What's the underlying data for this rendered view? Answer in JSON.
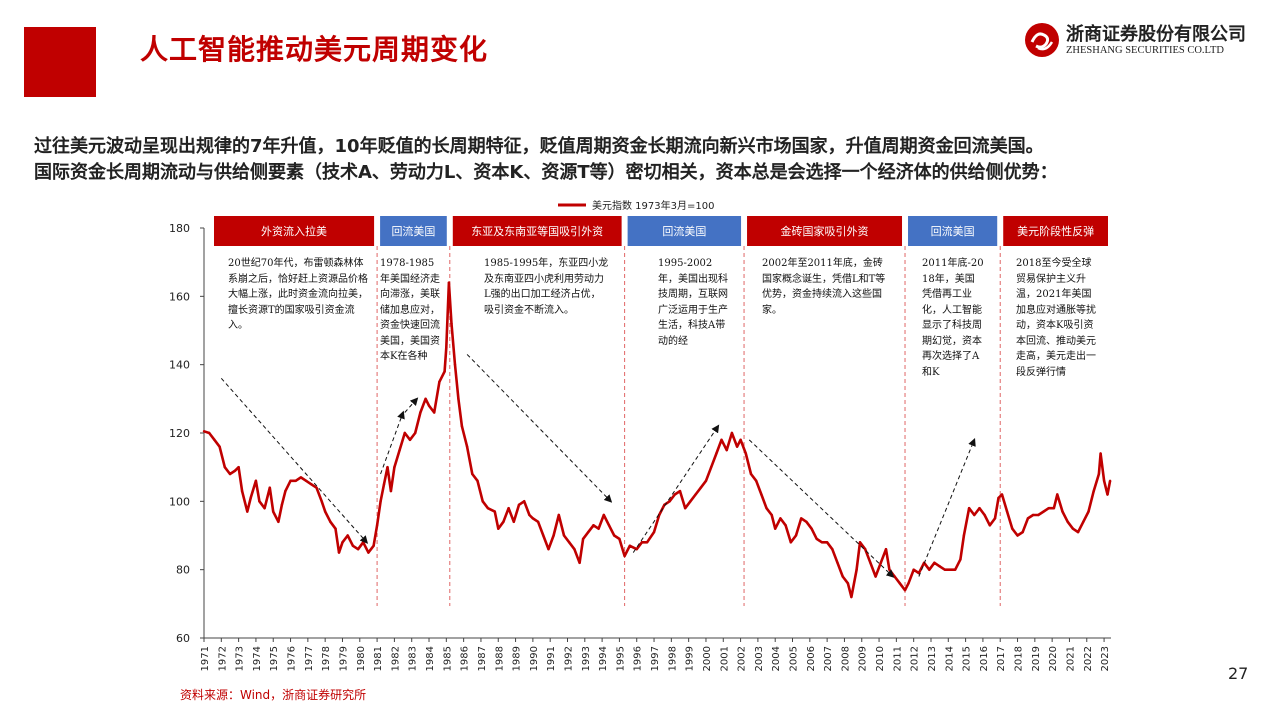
{
  "slide": {
    "title": "人工智能推动美元周期变化",
    "logo_cn": "浙商证券股份有限公司",
    "logo_en": "ZHESHANG SECURITIES CO.LTD",
    "intro_line1": "过往美元波动呈现出规律的7年升值，10年贬值的长周期特征，贬值周期资金长期流向新兴市场国家，升值周期资金回流美国。",
    "intro_line2": "国际资金长周期流动与供给侧要素（技术A、劳动力L、资本K、资源T等）密切相关，资本总是会选择一个经济体的供给侧优势：",
    "source": "资料来源：Wind，浙商证券研究所",
    "page_number": "27"
  },
  "colors": {
    "brand_red": "#c00000",
    "series_red": "#c00000",
    "period_red": "#c00000",
    "period_blue": "#4472c4",
    "divider": "#e06666"
  },
  "chart_data": {
    "type": "line",
    "title": "",
    "xlabel": "",
    "ylabel": "",
    "ylim": [
      60,
      180
    ],
    "yticks": [
      60,
      80,
      100,
      120,
      140,
      160,
      180
    ],
    "x_start_year": 1971,
    "x_end_year": 2023,
    "legend": "美元指数 1973年3月=100",
    "series": [
      {
        "name": "美元指数 1973年3月=100",
        "points": [
          [
            1971.0,
            120.5
          ],
          [
            1971.3,
            120
          ],
          [
            1971.6,
            118
          ],
          [
            1971.9,
            116
          ],
          [
            1972.2,
            110
          ],
          [
            1972.5,
            108
          ],
          [
            1972.8,
            109
          ],
          [
            1973.0,
            110
          ],
          [
            1973.2,
            103
          ],
          [
            1973.5,
            97
          ],
          [
            1973.7,
            101
          ],
          [
            1974.0,
            106
          ],
          [
            1974.2,
            100
          ],
          [
            1974.5,
            98
          ],
          [
            1974.8,
            104
          ],
          [
            1975.0,
            97
          ],
          [
            1975.3,
            94
          ],
          [
            1975.5,
            99
          ],
          [
            1975.7,
            103
          ],
          [
            1976.0,
            106
          ],
          [
            1976.3,
            106
          ],
          [
            1976.6,
            107
          ],
          [
            1976.9,
            106
          ],
          [
            1977.2,
            105
          ],
          [
            1977.5,
            104
          ],
          [
            1977.8,
            100
          ],
          [
            1978.0,
            97
          ],
          [
            1978.3,
            94
          ],
          [
            1978.6,
            92
          ],
          [
            1978.8,
            85
          ],
          [
            1979.0,
            88
          ],
          [
            1979.3,
            90
          ],
          [
            1979.6,
            87
          ],
          [
            1979.9,
            86
          ],
          [
            1980.2,
            88
          ],
          [
            1980.5,
            85
          ],
          [
            1980.8,
            87
          ],
          [
            1981.0,
            93
          ],
          [
            1981.2,
            100
          ],
          [
            1981.4,
            105
          ],
          [
            1981.6,
            110
          ],
          [
            1981.8,
            103
          ],
          [
            1982.0,
            110
          ],
          [
            1982.3,
            115
          ],
          [
            1982.6,
            120
          ],
          [
            1982.9,
            118
          ],
          [
            1983.2,
            120
          ],
          [
            1983.5,
            126
          ],
          [
            1983.8,
            130
          ],
          [
            1984.0,
            128
          ],
          [
            1984.3,
            126
          ],
          [
            1984.6,
            135
          ],
          [
            1984.9,
            138
          ],
          [
            1985.0,
            145
          ],
          [
            1985.15,
            164
          ],
          [
            1985.3,
            152
          ],
          [
            1985.5,
            140
          ],
          [
            1985.7,
            130
          ],
          [
            1985.9,
            122
          ],
          [
            1986.2,
            116
          ],
          [
            1986.5,
            108
          ],
          [
            1986.8,
            106
          ],
          [
            1987.1,
            100
          ],
          [
            1987.4,
            98
          ],
          [
            1987.8,
            97
          ],
          [
            1988.0,
            92
          ],
          [
            1988.3,
            94
          ],
          [
            1988.6,
            98
          ],
          [
            1988.9,
            94
          ],
          [
            1989.2,
            99
          ],
          [
            1989.5,
            100
          ],
          [
            1989.8,
            96
          ],
          [
            1990.0,
            95
          ],
          [
            1990.3,
            94
          ],
          [
            1990.6,
            90
          ],
          [
            1990.9,
            86
          ],
          [
            1991.2,
            90
          ],
          [
            1991.5,
            96
          ],
          [
            1991.8,
            90
          ],
          [
            1992.1,
            88
          ],
          [
            1992.4,
            86
          ],
          [
            1992.7,
            82
          ],
          [
            1992.9,
            89
          ],
          [
            1993.2,
            91
          ],
          [
            1993.5,
            93
          ],
          [
            1993.8,
            92
          ],
          [
            1994.1,
            96
          ],
          [
            1994.4,
            93
          ],
          [
            1994.7,
            90
          ],
          [
            1995.0,
            89
          ],
          [
            1995.3,
            84
          ],
          [
            1995.6,
            87
          ],
          [
            1996.0,
            86
          ],
          [
            1996.3,
            88
          ],
          [
            1996.6,
            88
          ],
          [
            1997.0,
            91
          ],
          [
            1997.3,
            96
          ],
          [
            1997.6,
            99
          ],
          [
            1997.9,
            100
          ],
          [
            1998.2,
            102
          ],
          [
            1998.5,
            103
          ],
          [
            1998.8,
            98
          ],
          [
            1999.1,
            100
          ],
          [
            1999.4,
            102
          ],
          [
            1999.7,
            104
          ],
          [
            2000.0,
            106
          ],
          [
            2000.3,
            110
          ],
          [
            2000.6,
            114
          ],
          [
            2000.9,
            118
          ],
          [
            2001.2,
            115
          ],
          [
            2001.5,
            120
          ],
          [
            2001.8,
            116
          ],
          [
            2002.0,
            118
          ],
          [
            2002.3,
            114
          ],
          [
            2002.6,
            108
          ],
          [
            2002.9,
            106
          ],
          [
            2003.2,
            102
          ],
          [
            2003.5,
            98
          ],
          [
            2003.8,
            96
          ],
          [
            2004.0,
            92
          ],
          [
            2004.3,
            95
          ],
          [
            2004.6,
            93
          ],
          [
            2004.9,
            88
          ],
          [
            2005.2,
            90
          ],
          [
            2005.5,
            95
          ],
          [
            2005.8,
            94
          ],
          [
            2006.1,
            92
          ],
          [
            2006.4,
            89
          ],
          [
            2006.7,
            88
          ],
          [
            2007.0,
            88
          ],
          [
            2007.3,
            86
          ],
          [
            2007.6,
            82
          ],
          [
            2007.9,
            78
          ],
          [
            2008.2,
            76
          ],
          [
            2008.4,
            72
          ],
          [
            2008.7,
            80
          ],
          [
            2008.9,
            88
          ],
          [
            2009.2,
            86
          ],
          [
            2009.5,
            82
          ],
          [
            2009.8,
            78
          ],
          [
            2010.1,
            82
          ],
          [
            2010.4,
            86
          ],
          [
            2010.6,
            80
          ],
          [
            2010.9,
            78
          ],
          [
            2011.2,
            76
          ],
          [
            2011.5,
            74
          ],
          [
            2011.7,
            76
          ],
          [
            2012.0,
            80
          ],
          [
            2012.3,
            79
          ],
          [
            2012.6,
            82
          ],
          [
            2012.9,
            80
          ],
          [
            2013.2,
            82
          ],
          [
            2013.5,
            81
          ],
          [
            2013.8,
            80
          ],
          [
            2014.1,
            80
          ],
          [
            2014.4,
            80
          ],
          [
            2014.7,
            83
          ],
          [
            2014.9,
            90
          ],
          [
            2015.2,
            98
          ],
          [
            2015.5,
            96
          ],
          [
            2015.8,
            98
          ],
          [
            2016.1,
            96
          ],
          [
            2016.4,
            93
          ],
          [
            2016.7,
            95
          ],
          [
            2016.9,
            101
          ],
          [
            2017.1,
            102
          ],
          [
            2017.4,
            97
          ],
          [
            2017.7,
            92
          ],
          [
            2018.0,
            90
          ],
          [
            2018.3,
            91
          ],
          [
            2018.6,
            95
          ],
          [
            2018.9,
            96
          ],
          [
            2019.2,
            96
          ],
          [
            2019.5,
            97
          ],
          [
            2019.8,
            98
          ],
          [
            2020.1,
            98
          ],
          [
            2020.3,
            102
          ],
          [
            2020.6,
            97
          ],
          [
            2020.9,
            94
          ],
          [
            2021.2,
            92
          ],
          [
            2021.5,
            91
          ],
          [
            2021.8,
            94
          ],
          [
            2022.1,
            97
          ],
          [
            2022.4,
            103
          ],
          [
            2022.7,
            108
          ],
          [
            2022.8,
            114
          ],
          [
            2023.0,
            106
          ],
          [
            2023.2,
            102
          ],
          [
            2023.35,
            106
          ]
        ]
      }
    ],
    "periods": [
      {
        "label": "外资流入拉美",
        "start": 1971.0,
        "end": 1981.0,
        "color": "red"
      },
      {
        "label": "回流美国",
        "start": 1981.0,
        "end": 1985.2,
        "color": "blue"
      },
      {
        "label": "东亚及东南亚等国吸引外资",
        "start": 1985.2,
        "end": 1995.3,
        "color": "red"
      },
      {
        "label": "回流美国",
        "start": 1995.3,
        "end": 2002.2,
        "color": "blue"
      },
      {
        "label": "金砖国家吸引外资",
        "start": 2002.2,
        "end": 2011.5,
        "color": "red"
      },
      {
        "label": "回流美国",
        "start": 2011.5,
        "end": 2017.0,
        "color": "blue"
      },
      {
        "label": "美元阶段性反弹",
        "start": 2017.0,
        "end": 2023.4,
        "color": "red"
      }
    ],
    "dividers": [
      1981.0,
      1985.2,
      1995.3,
      2002.2,
      2011.5,
      2017.0
    ],
    "annotations": [
      "20世纪70年代，布雷顿森林体系崩之后，恰好赶上资源品价格大幅上涨，此时资金流向拉美，擅长资源T的国家吸引资金流入。",
      "1978-1985年美国经济走向滞涨，美联储加息应对，资金快速回流美国，美国资本K在各种",
      "1985-1995年，东亚四小龙及东南亚四小虎利用劳动力L强的出口加工经济占优，吸引资金不断流入。",
      "1995-2002年，美国出现科技周期，互联网广泛运用于生产生活，科技A带动的经",
      "2002年至2011年底，金砖国家概念诞生，凭借L和T等优势，资金持续流入这些国家。",
      "2011年底-2018年，美国凭借再工业化，人工智能显示了科技周期幻觉，资本再次选择了A和K",
      "2018至今受全球贸易保护主义升温，2021年美国加息应对通胀等扰动，资本K吸引资本回流、推动美元走高，美元走出一段反弹行情"
    ]
  }
}
